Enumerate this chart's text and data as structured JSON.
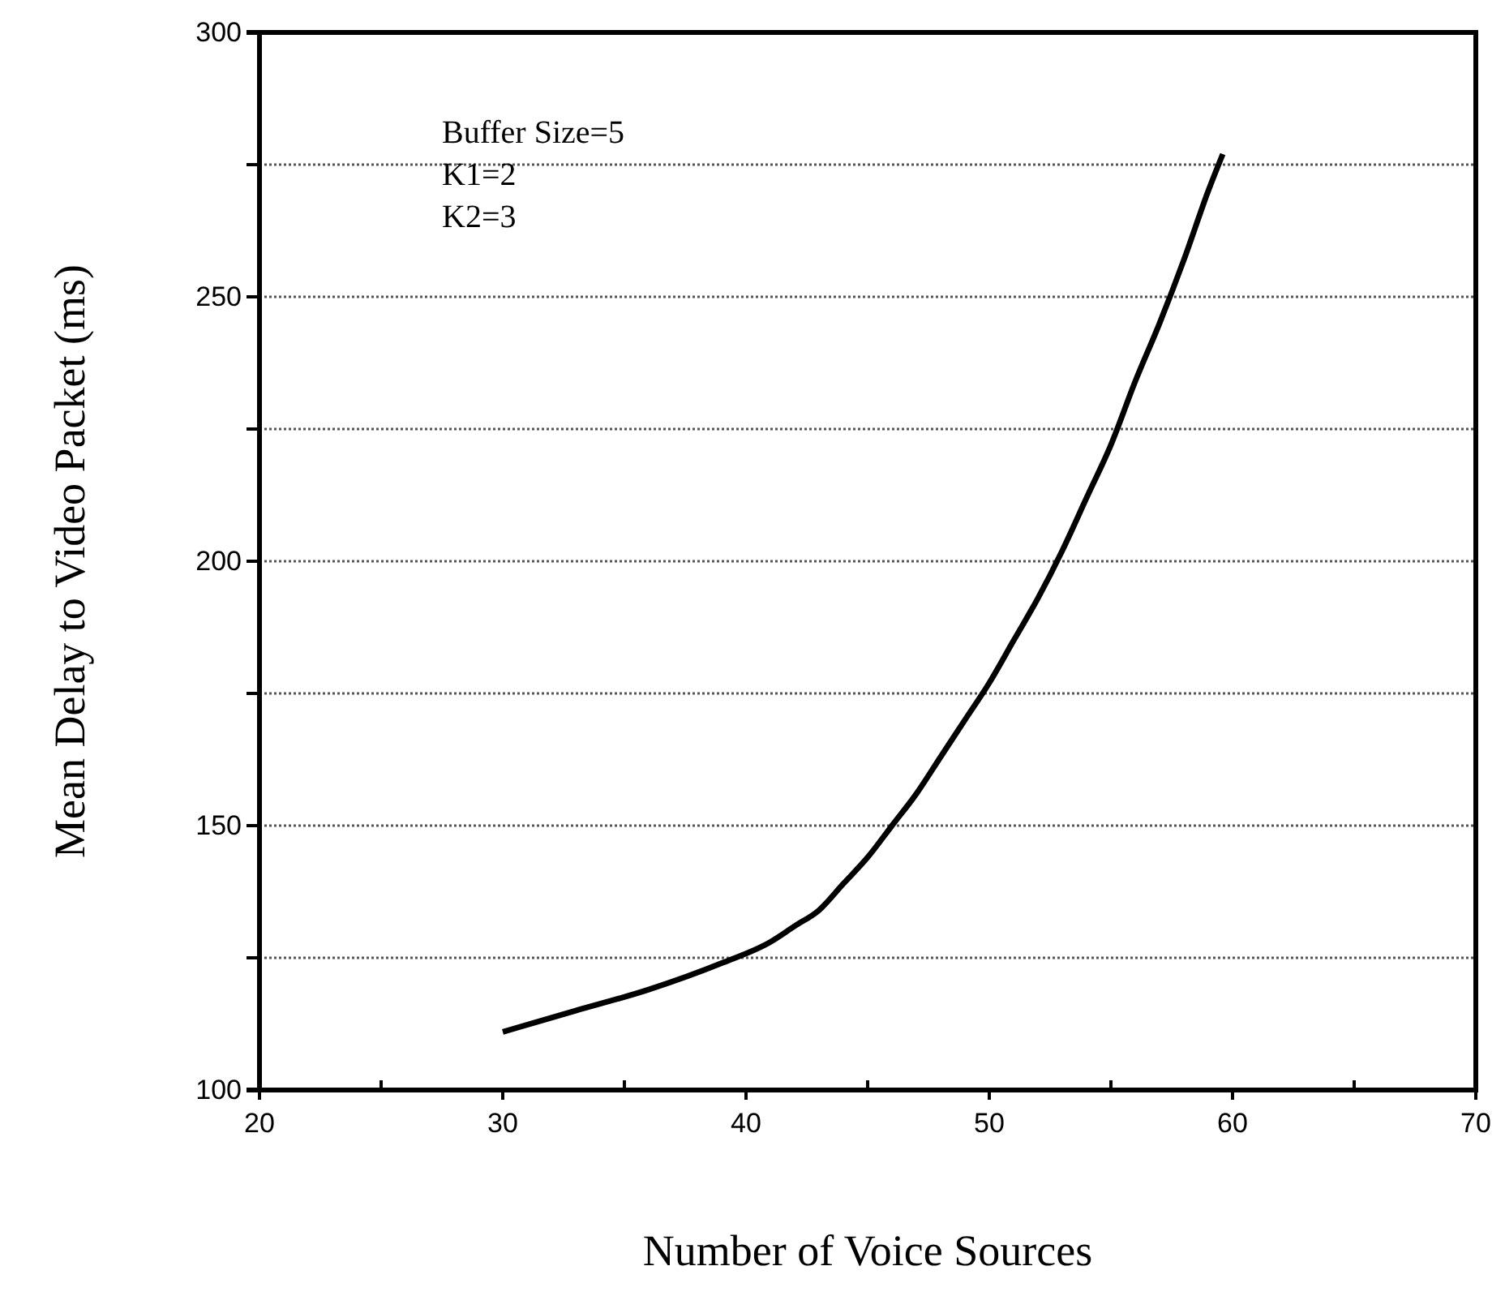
{
  "chart_data": {
    "type": "line",
    "xlabel": "Number of Voice Sources",
    "ylabel": "Mean Delay to Video Packet (ms)",
    "annotations": [
      "Buffer Size=5",
      "K1=2",
      "K2=3"
    ],
    "x": [
      30,
      33,
      36,
      39,
      41,
      42,
      43,
      44,
      45,
      46,
      47,
      48,
      49,
      50,
      51,
      52,
      53,
      54,
      55,
      56,
      57,
      58,
      59,
      59.6
    ],
    "values": [
      111,
      115,
      119,
      124,
      128,
      131,
      134,
      139,
      144,
      150,
      156,
      163,
      170,
      177,
      185,
      193,
      202,
      212,
      222,
      234,
      245,
      257,
      270,
      277
    ],
    "color": "#000000",
    "marker": "none",
    "line_style": "solid",
    "xlim": [
      20,
      70
    ],
    "xticks": [
      20,
      {
        "value": 25,
        "label": null
      },
      30,
      {
        "value": 35,
        "label": null
      },
      40,
      {
        "value": 45,
        "label": null
      },
      50,
      {
        "value": 55,
        "label": null
      },
      60,
      {
        "value": 65,
        "label": null
      },
      70
    ],
    "ylim": [
      100,
      300
    ],
    "yticks": [
      100,
      {
        "value": 125,
        "label": null
      },
      150,
      {
        "value": 175,
        "label": null
      },
      200,
      {
        "value": 225,
        "label": null
      },
      250,
      {
        "value": 275,
        "label": null
      },
      300
    ],
    "grid": "y"
  }
}
